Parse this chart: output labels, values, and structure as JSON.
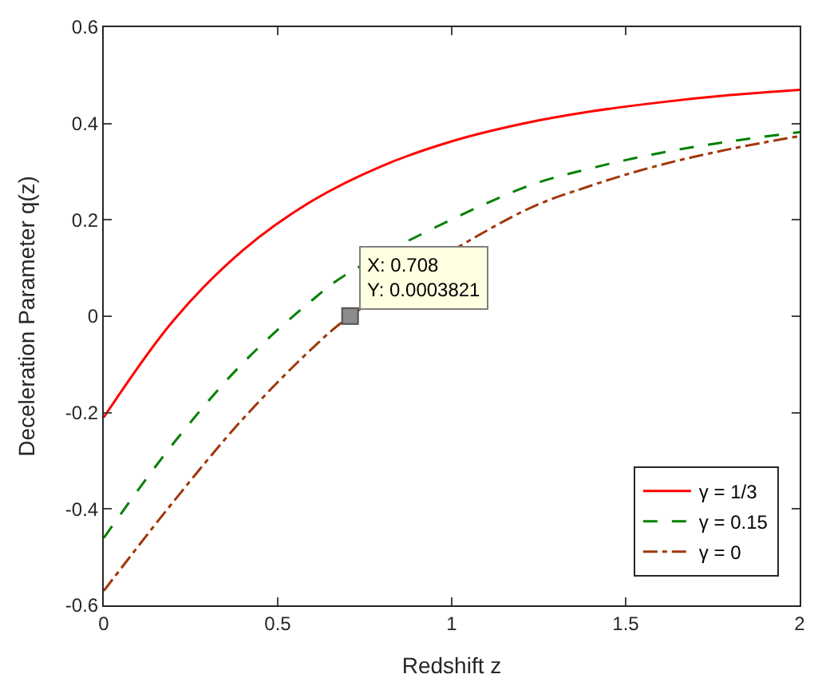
{
  "chart_data": {
    "type": "line",
    "xlabel": "Redshift z",
    "ylabel": "Deceleration Parameter q(z)",
    "x": [
      0,
      0.2,
      0.4,
      0.6,
      0.8,
      1.0,
      1.2,
      1.4,
      1.6,
      1.8,
      2.0
    ],
    "series": [
      {
        "name": "γ = 1/3",
        "color": "#ff0000",
        "line_style": "solid",
        "values": [
          -0.21,
          -0.009,
          0.137,
          0.24,
          0.312,
          0.363,
          0.399,
          0.425,
          0.444,
          0.459,
          0.47
        ]
      },
      {
        "name": "γ = 0.15",
        "color": "#008000",
        "line_style": "dashed",
        "x": [
          0,
          0.2,
          0.4,
          0.6,
          0.7,
          1.2,
          1.4,
          1.6,
          1.8,
          2.0
        ],
        "values": [
          -0.46,
          -0.264,
          -0.097,
          0.034,
          0.088,
          0.265,
          0.307,
          0.339,
          0.363,
          0.382
        ]
      },
      {
        "name": "γ = 0",
        "color": "#a0360a",
        "line_style": "dashdot",
        "x": [
          0,
          0.2,
          0.4,
          0.6,
          0.708,
          1.2,
          1.4,
          1.6,
          1.8,
          2.0
        ],
        "values": [
          -0.57,
          -0.385,
          -0.213,
          -0.066,
          0.0,
          0.216,
          0.271,
          0.314,
          0.347,
          0.374
        ]
      }
    ],
    "annotations": [
      {
        "text": "X: 0.708\nY: 0.0003821",
        "x": 0.708,
        "y": 0.0003821
      }
    ],
    "xlim": [
      0,
      2
    ],
    "xticks": [
      0,
      0.5,
      1,
      1.5,
      2
    ],
    "ylim": [
      -0.6,
      0.6
    ],
    "yticks": [
      -0.6,
      -0.4,
      -0.2,
      0,
      0.2,
      0.4,
      0.6
    ],
    "grid": false,
    "legend": "bottom right",
    "marker": "none"
  }
}
